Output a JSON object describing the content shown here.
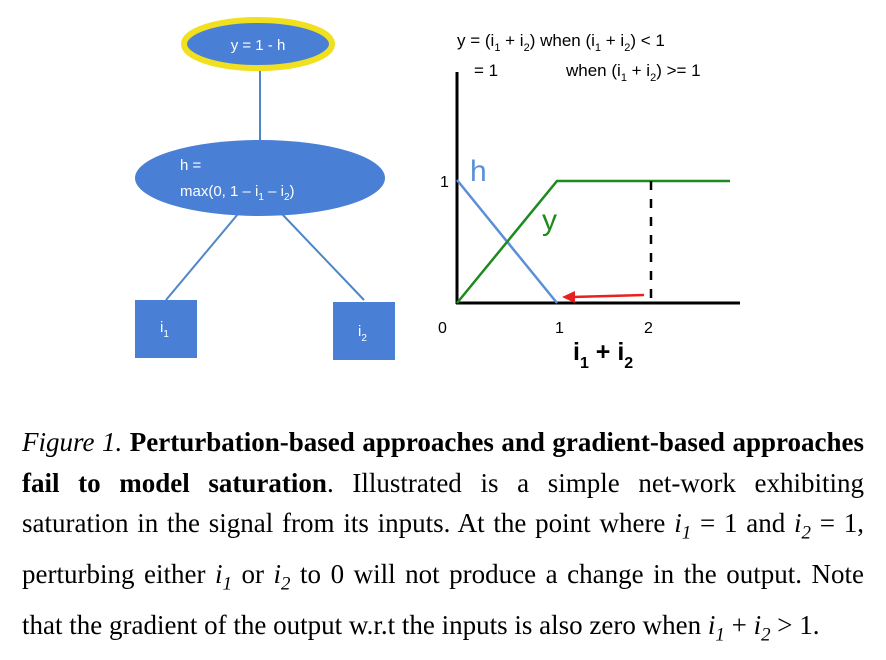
{
  "network": {
    "output_node": {
      "label": "y = 1 - h"
    },
    "hidden_node": {
      "line1": "h =",
      "line2_prefix": "max(0, 1 – i",
      "line2_mid": " – i",
      "line2_suffix": ")",
      "sub1": "1",
      "sub2": "2"
    },
    "input1": {
      "label": "i",
      "sub": "1"
    },
    "input2": {
      "label": "i",
      "sub": "2"
    },
    "colors": {
      "node_fill": "#4a7fd6",
      "output_ring": "#f0e020",
      "edge": "#4f86c6"
    }
  },
  "plot": {
    "equation_line1": {
      "y_part": "y = (i",
      "s1": "1",
      "plus": " + i",
      "s2": "2",
      "tail": ") when (i",
      "s3": "1",
      "plus2": " + i",
      "s4": "2",
      "end": ")  <  1"
    },
    "equation_line2": {
      "eq": "= 1",
      "when": "when (i",
      "s1": "1",
      "plus": " + i",
      "s2": "2",
      "end": ") >= 1"
    },
    "h_label": "h",
    "y_label": "y",
    "y_tick": "1",
    "x_ticks": [
      "0",
      "1",
      "2"
    ],
    "x_axis_label": {
      "a": "i",
      "s1": "1",
      "plus": " + i",
      "s2": "2"
    },
    "colors": {
      "h_line": "#5b8fd8",
      "y_line": "#1e8a1e",
      "arrow": "#e82020",
      "axis": "#000000"
    }
  },
  "caption": {
    "figure_label": "Figure 1.",
    "title": "Perturbation-based approaches and gradient-based approaches fail to model saturation",
    "text1": ". Illustrated is a simple net-work exhibiting saturation in the signal from its inputs.  At the point where ",
    "i": "i",
    "sub1": "1",
    "sub2": "2",
    "eq1": " = 1",
    "and": " and ",
    "eq2": " = 1",
    "text2": ", perturbing either ",
    "or": " or ",
    "text3": " to 0 will not produce a change in the output. Note that the gradient of the output w.r.t the inputs is also zero when ",
    "plus": " + ",
    "gt": " > 1."
  }
}
